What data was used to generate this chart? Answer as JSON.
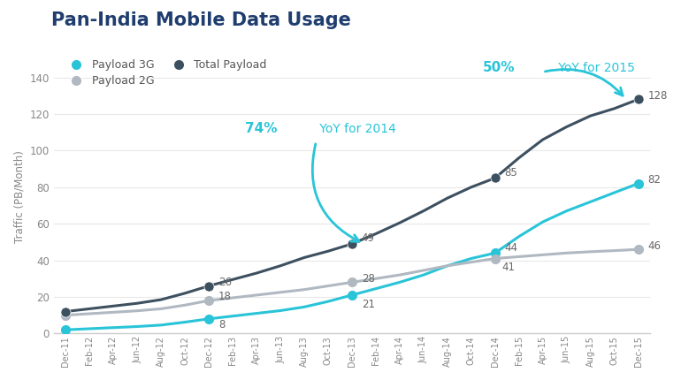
{
  "title": "Pan-India Mobile Data Usage",
  "ylabel": "Traffic (PB/Month)",
  "background_color": "#ffffff",
  "title_color": "#1f3d6e",
  "title_fontsize": 15,
  "ylim": [
    0,
    150
  ],
  "x_labels": [
    "Dec-11",
    "Feb-12",
    "Apr-12",
    "Jun-12",
    "Aug-12",
    "Oct-12",
    "Dec-12",
    "Feb-13",
    "Apr-13",
    "Jun-13",
    "Aug-13",
    "Oct-13",
    "Dec-13",
    "Feb-14",
    "Apr-14",
    "Jun-14",
    "Aug-14",
    "Oct-14",
    "Dec-14",
    "Feb-15",
    "Apr-15",
    "Jun-15",
    "Aug-15",
    "Oct-15",
    "Dec-15"
  ],
  "key_indices": [
    0,
    6,
    12,
    18,
    24
  ],
  "payload_3g": {
    "label": "Payload 3G",
    "color": "#29c4d8",
    "values_at_keys": [
      2,
      8,
      21,
      44,
      82
    ],
    "all_values": [
      2,
      2.6,
      3.2,
      3.8,
      4.6,
      6.2,
      8,
      9.5,
      11.0,
      12.5,
      14.5,
      17.5,
      21,
      24.5,
      28,
      32,
      37,
      41,
      44,
      53,
      61,
      67,
      72,
      77,
      82
    ]
  },
  "payload_2g": {
    "label": "Payload 2G",
    "color": "#b0b8c1",
    "values_at_keys": [
      10,
      18,
      28,
      41,
      46
    ],
    "all_values": [
      10,
      10.8,
      11.6,
      12.4,
      13.5,
      15.5,
      18,
      19.5,
      21,
      22.5,
      24,
      26,
      28,
      30,
      32,
      34.5,
      37,
      39,
      41,
      42,
      43,
      44,
      44.7,
      45.3,
      46
    ]
  },
  "total_payload": {
    "label": "Total Payload",
    "color": "#3d5060",
    "values_at_keys": [
      12,
      26,
      49,
      85,
      128
    ],
    "all_values": [
      12,
      13.5,
      15,
      16.5,
      18.5,
      22,
      26,
      29.5,
      33,
      37,
      41.5,
      45,
      49,
      54.5,
      60.5,
      67,
      74,
      80,
      85,
      96,
      106,
      113,
      119,
      123,
      128
    ]
  },
  "yticks": [
    0,
    20,
    40,
    60,
    80,
    100,
    120,
    140
  ],
  "point_label_fontsize": 8.5,
  "point_label_color": "#666666",
  "legend_fontsize": 9,
  "ann74_bold": "74%",
  "ann74_rest": " YoY for 2014",
  "ann50_bold": "50%",
  "ann50_rest": " YoY for 2015",
  "ann_color": "#29c4d8"
}
